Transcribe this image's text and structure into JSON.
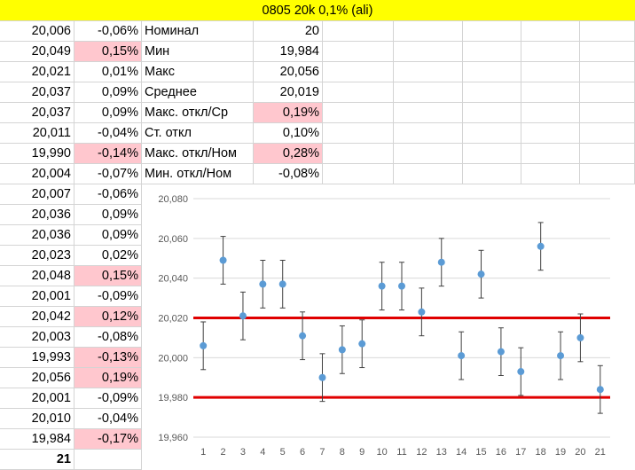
{
  "title": "0805 20k 0,1% (ali)",
  "highlight_color": "#ffc7ce",
  "rows": [
    {
      "value": "20,006",
      "dev": "-0,06%",
      "dev_hl": false
    },
    {
      "value": "20,049",
      "dev": "0,15%",
      "dev_hl": true
    },
    {
      "value": "20,021",
      "dev": "0,01%",
      "dev_hl": false
    },
    {
      "value": "20,037",
      "dev": "0,09%",
      "dev_hl": false
    },
    {
      "value": "20,037",
      "dev": "0,09%",
      "dev_hl": false
    },
    {
      "value": "20,011",
      "dev": "-0,04%",
      "dev_hl": false
    },
    {
      "value": "19,990",
      "dev": "-0,14%",
      "dev_hl": true
    },
    {
      "value": "20,004",
      "dev": "-0,07%",
      "dev_hl": false
    },
    {
      "value": "20,007",
      "dev": "-0,06%",
      "dev_hl": false
    },
    {
      "value": "20,036",
      "dev": "0,09%",
      "dev_hl": false
    },
    {
      "value": "20,036",
      "dev": "0,09%",
      "dev_hl": false
    },
    {
      "value": "20,023",
      "dev": "0,02%",
      "dev_hl": false
    },
    {
      "value": "20,048",
      "dev": "0,15%",
      "dev_hl": true
    },
    {
      "value": "20,001",
      "dev": "-0,09%",
      "dev_hl": false
    },
    {
      "value": "20,042",
      "dev": "0,12%",
      "dev_hl": true
    },
    {
      "value": "20,003",
      "dev": "-0,08%",
      "dev_hl": false
    },
    {
      "value": "19,993",
      "dev": "-0,13%",
      "dev_hl": true
    },
    {
      "value": "20,056",
      "dev": "0,19%",
      "dev_hl": true
    },
    {
      "value": "20,001",
      "dev": "-0,09%",
      "dev_hl": false
    },
    {
      "value": "20,010",
      "dev": "-0,04%",
      "dev_hl": false
    },
    {
      "value": "19,984",
      "dev": "-0,17%",
      "dev_hl": true
    }
  ],
  "count": "21",
  "stats": [
    {
      "label": "Номинал",
      "value": "20",
      "hl": false
    },
    {
      "label": "Мин",
      "value": "19,984",
      "hl": false
    },
    {
      "label": "Макс",
      "value": "20,056",
      "hl": false
    },
    {
      "label": "Среднее",
      "value": "20,019",
      "hl": false
    },
    {
      "label": "Макс. откл/Ср",
      "value": "0,19%",
      "hl": true
    },
    {
      "label": "Ст. откл",
      "value": "0,10%",
      "hl": false
    },
    {
      "label": "Макс. откл/Ном",
      "value": "0,28%",
      "hl": true
    },
    {
      "label": "Мин. откл/Ном",
      "value": "-0,08%",
      "hl": false
    }
  ],
  "chart_data": {
    "type": "scatter",
    "x": [
      1,
      2,
      3,
      4,
      5,
      6,
      7,
      8,
      9,
      10,
      11,
      12,
      13,
      14,
      15,
      16,
      17,
      18,
      19,
      20,
      21
    ],
    "y": [
      20.006,
      20.049,
      20.021,
      20.037,
      20.037,
      20.011,
      19.99,
      20.004,
      20.007,
      20.036,
      20.036,
      20.023,
      20.048,
      20.001,
      20.042,
      20.003,
      19.993,
      20.056,
      20.001,
      20.01,
      19.984
    ],
    "error_bar": 0.012,
    "ylim": [
      19.96,
      20.08
    ],
    "yticks": [
      "19,960",
      "19,980",
      "20,000",
      "20,020",
      "20,040",
      "20,060",
      "20,080"
    ],
    "ytick_values": [
      19.96,
      19.98,
      20.0,
      20.02,
      20.04,
      20.06,
      20.08
    ],
    "xticks": [
      "1",
      "2",
      "3",
      "4",
      "5",
      "6",
      "7",
      "8",
      "9",
      "10",
      "11",
      "12",
      "13",
      "14",
      "15",
      "16",
      "17",
      "18",
      "19",
      "20",
      "21"
    ],
    "hlines": [
      20.02,
      19.98
    ],
    "hline_color": "#e00000",
    "point_color": "#5b9bd5",
    "grid": true
  }
}
